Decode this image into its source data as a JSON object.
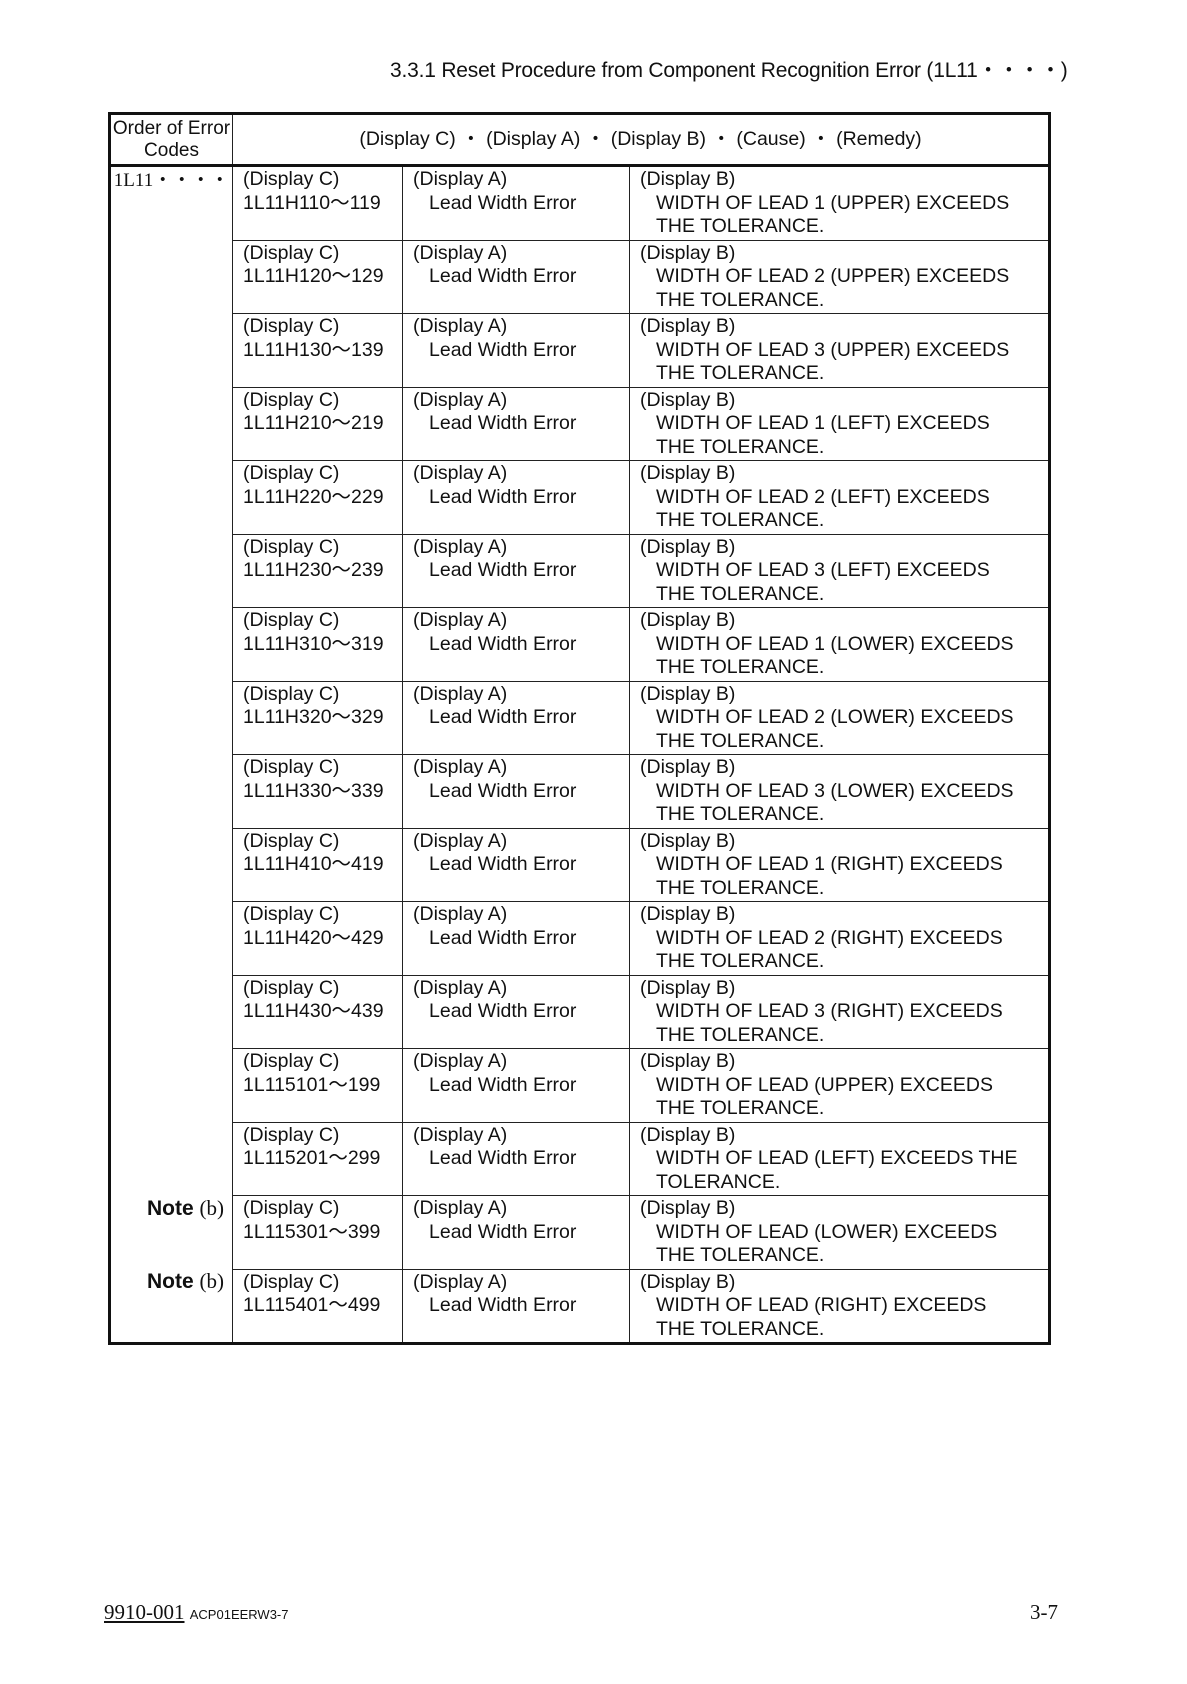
{
  "title": "3.3.1 Reset Procedure from Component Recognition Error (1L11・・・・)",
  "table": {
    "header_col1": "Order of Error Codes",
    "header_col2": "(Display C) ・ (Display A) ・ (Display B) ・ (Cause) ・ (Remedy)",
    "order_code": "1L11・・・・",
    "rows": [
      {
        "note": "",
        "c_label": "(Display C)",
        "c_code": "1L11H110〜119",
        "a_label": "(Display A)",
        "a_text": "Lead Width Error",
        "b_label": "(Display B)",
        "b_text1": "WIDTH OF LEAD 1 (UPPER) EXCEEDS",
        "b_text2": "THE TOLERANCE."
      },
      {
        "note": "",
        "c_label": "(Display C)",
        "c_code": "1L11H120〜129",
        "a_label": "(Display A)",
        "a_text": "Lead Width Error",
        "b_label": "(Display B)",
        "b_text1": "WIDTH OF LEAD 2 (UPPER) EXCEEDS",
        "b_text2": "THE TOLERANCE."
      },
      {
        "note": "",
        "c_label": "(Display C)",
        "c_code": "1L11H130〜139",
        "a_label": "(Display A)",
        "a_text": "Lead Width Error",
        "b_label": "(Display B)",
        "b_text1": "WIDTH OF LEAD 3 (UPPER) EXCEEDS",
        "b_text2": "THE TOLERANCE."
      },
      {
        "note": "",
        "c_label": "(Display C)",
        "c_code": "1L11H210〜219",
        "a_label": "(Display A)",
        "a_text": "Lead Width Error",
        "b_label": "(Display B)",
        "b_text1": "WIDTH OF LEAD 1 (LEFT) EXCEEDS",
        "b_text2": "THE TOLERANCE."
      },
      {
        "note": "",
        "c_label": "(Display C)",
        "c_code": "1L11H220〜229",
        "a_label": "(Display A)",
        "a_text": "Lead Width Error",
        "b_label": "(Display B)",
        "b_text1": "WIDTH OF LEAD 2 (LEFT) EXCEEDS",
        "b_text2": "THE TOLERANCE."
      },
      {
        "note": "",
        "c_label": "(Display C)",
        "c_code": "1L11H230〜239",
        "a_label": "(Display A)",
        "a_text": "Lead Width Error",
        "b_label": "(Display B)",
        "b_text1": "WIDTH OF LEAD 3 (LEFT) EXCEEDS",
        "b_text2": "THE TOLERANCE."
      },
      {
        "note": "",
        "c_label": "(Display C)",
        "c_code": "1L11H310〜319",
        "a_label": "(Display A)",
        "a_text": "Lead Width Error",
        "b_label": "(Display B)",
        "b_text1": "WIDTH OF LEAD 1 (LOWER) EXCEEDS",
        "b_text2": "THE TOLERANCE."
      },
      {
        "note": "",
        "c_label": "(Display C)",
        "c_code": "1L11H320〜329",
        "a_label": "(Display A)",
        "a_text": "Lead Width Error",
        "b_label": "(Display B)",
        "b_text1": "WIDTH OF LEAD 2 (LOWER) EXCEEDS",
        "b_text2": "THE TOLERANCE."
      },
      {
        "note": "",
        "c_label": "(Display C)",
        "c_code": "1L11H330〜339",
        "a_label": "(Display A)",
        "a_text": "Lead Width Error",
        "b_label": "(Display B)",
        "b_text1": "WIDTH OF LEAD 3 (LOWER) EXCEEDS",
        "b_text2": "THE TOLERANCE."
      },
      {
        "note": "",
        "c_label": "(Display C)",
        "c_code": "1L11H410〜419",
        "a_label": "(Display A)",
        "a_text": "Lead Width Error",
        "b_label": "(Display B)",
        "b_text1": "WIDTH OF LEAD 1 (RIGHT) EXCEEDS",
        "b_text2": "THE TOLERANCE."
      },
      {
        "note": "",
        "c_label": "(Display C)",
        "c_code": "1L11H420〜429",
        "a_label": "(Display A)",
        "a_text": "Lead Width Error",
        "b_label": "(Display B)",
        "b_text1": "WIDTH OF LEAD 2 (RIGHT) EXCEEDS",
        "b_text2": "THE TOLERANCE."
      },
      {
        "note": "",
        "c_label": "(Display C)",
        "c_code": "1L11H430〜439",
        "a_label": "(Display A)",
        "a_text": "Lead Width Error",
        "b_label": "(Display B)",
        "b_text1": "WIDTH OF LEAD 3 (RIGHT) EXCEEDS",
        "b_text2": "THE TOLERANCE."
      },
      {
        "note": "",
        "c_label": "(Display C)",
        "c_code": "1L115101〜199",
        "a_label": "(Display A)",
        "a_text": "Lead Width Error",
        "b_label": "(Display B)",
        "b_text1": "WIDTH OF LEAD (UPPER) EXCEEDS",
        "b_text2": "THE TOLERANCE."
      },
      {
        "note": "",
        "c_label": "(Display C)",
        "c_code": "1L115201〜299",
        "a_label": "(Display A)",
        "a_text": "Lead Width Error",
        "b_label": "(Display B)",
        "b_text1": "WIDTH OF LEAD (LEFT) EXCEEDS THE",
        "b_text2": "TOLERANCE."
      },
      {
        "note": "Note",
        "note_sub": "(b)",
        "c_label": "(Display C)",
        "c_code": "1L115301〜399",
        "a_label": "(Display A)",
        "a_text": "Lead Width Error",
        "b_label": "(Display B)",
        "b_text1": "WIDTH OF LEAD (LOWER) EXCEEDS",
        "b_text2": "THE TOLERANCE."
      },
      {
        "note": "Note",
        "note_sub": "(b)",
        "c_label": "(Display C)",
        "c_code": "1L115401〜499",
        "a_label": "(Display A)",
        "a_text": "Lead Width Error",
        "b_label": "(Display B)",
        "b_text1": "WIDTH OF LEAD (RIGHT) EXCEEDS",
        "b_text2": "THE TOLERANCE."
      }
    ]
  },
  "footer": {
    "doc_number": "9910-001",
    "doc_code": "ACP01EERW3-7",
    "page_number": "3-7"
  }
}
